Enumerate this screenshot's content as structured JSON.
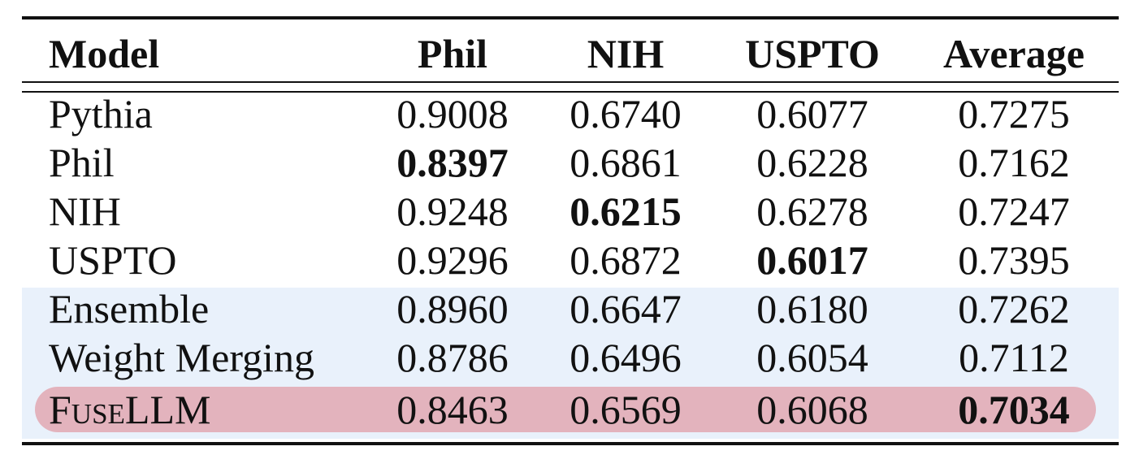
{
  "table": {
    "columns": [
      "Model",
      "Phil",
      "NIH",
      "USPTO",
      "Average"
    ],
    "rows": [
      {
        "model": "Pythia",
        "phil": "0.9008",
        "nih": "0.6740",
        "uspto": "0.6077",
        "average": "0.7275"
      },
      {
        "model": "Phil",
        "phil": "0.8397",
        "nih": "0.6861",
        "uspto": "0.6228",
        "average": "0.7162"
      },
      {
        "model": "NIH",
        "phil": "0.9248",
        "nih": "0.6215",
        "uspto": "0.6278",
        "average": "0.7247"
      },
      {
        "model": "USPTO",
        "phil": "0.9296",
        "nih": "0.6872",
        "uspto": "0.6017",
        "average": "0.7395"
      },
      {
        "model": "Ensemble",
        "phil": "0.8960",
        "nih": "0.6647",
        "uspto": "0.6180",
        "average": "0.7262"
      },
      {
        "model": "Weight Merging",
        "phil": "0.8786",
        "nih": "0.6496",
        "uspto": "0.6054",
        "average": "0.7112"
      },
      {
        "model": "FuseLLM",
        "phil": "0.8463",
        "nih": "0.6569",
        "uspto": "0.6068",
        "average": "0.7034"
      }
    ]
  },
  "colors": {
    "group_shade": "#e9f1fb",
    "highlight_row": "#e3b3bd",
    "text": "#111111"
  }
}
